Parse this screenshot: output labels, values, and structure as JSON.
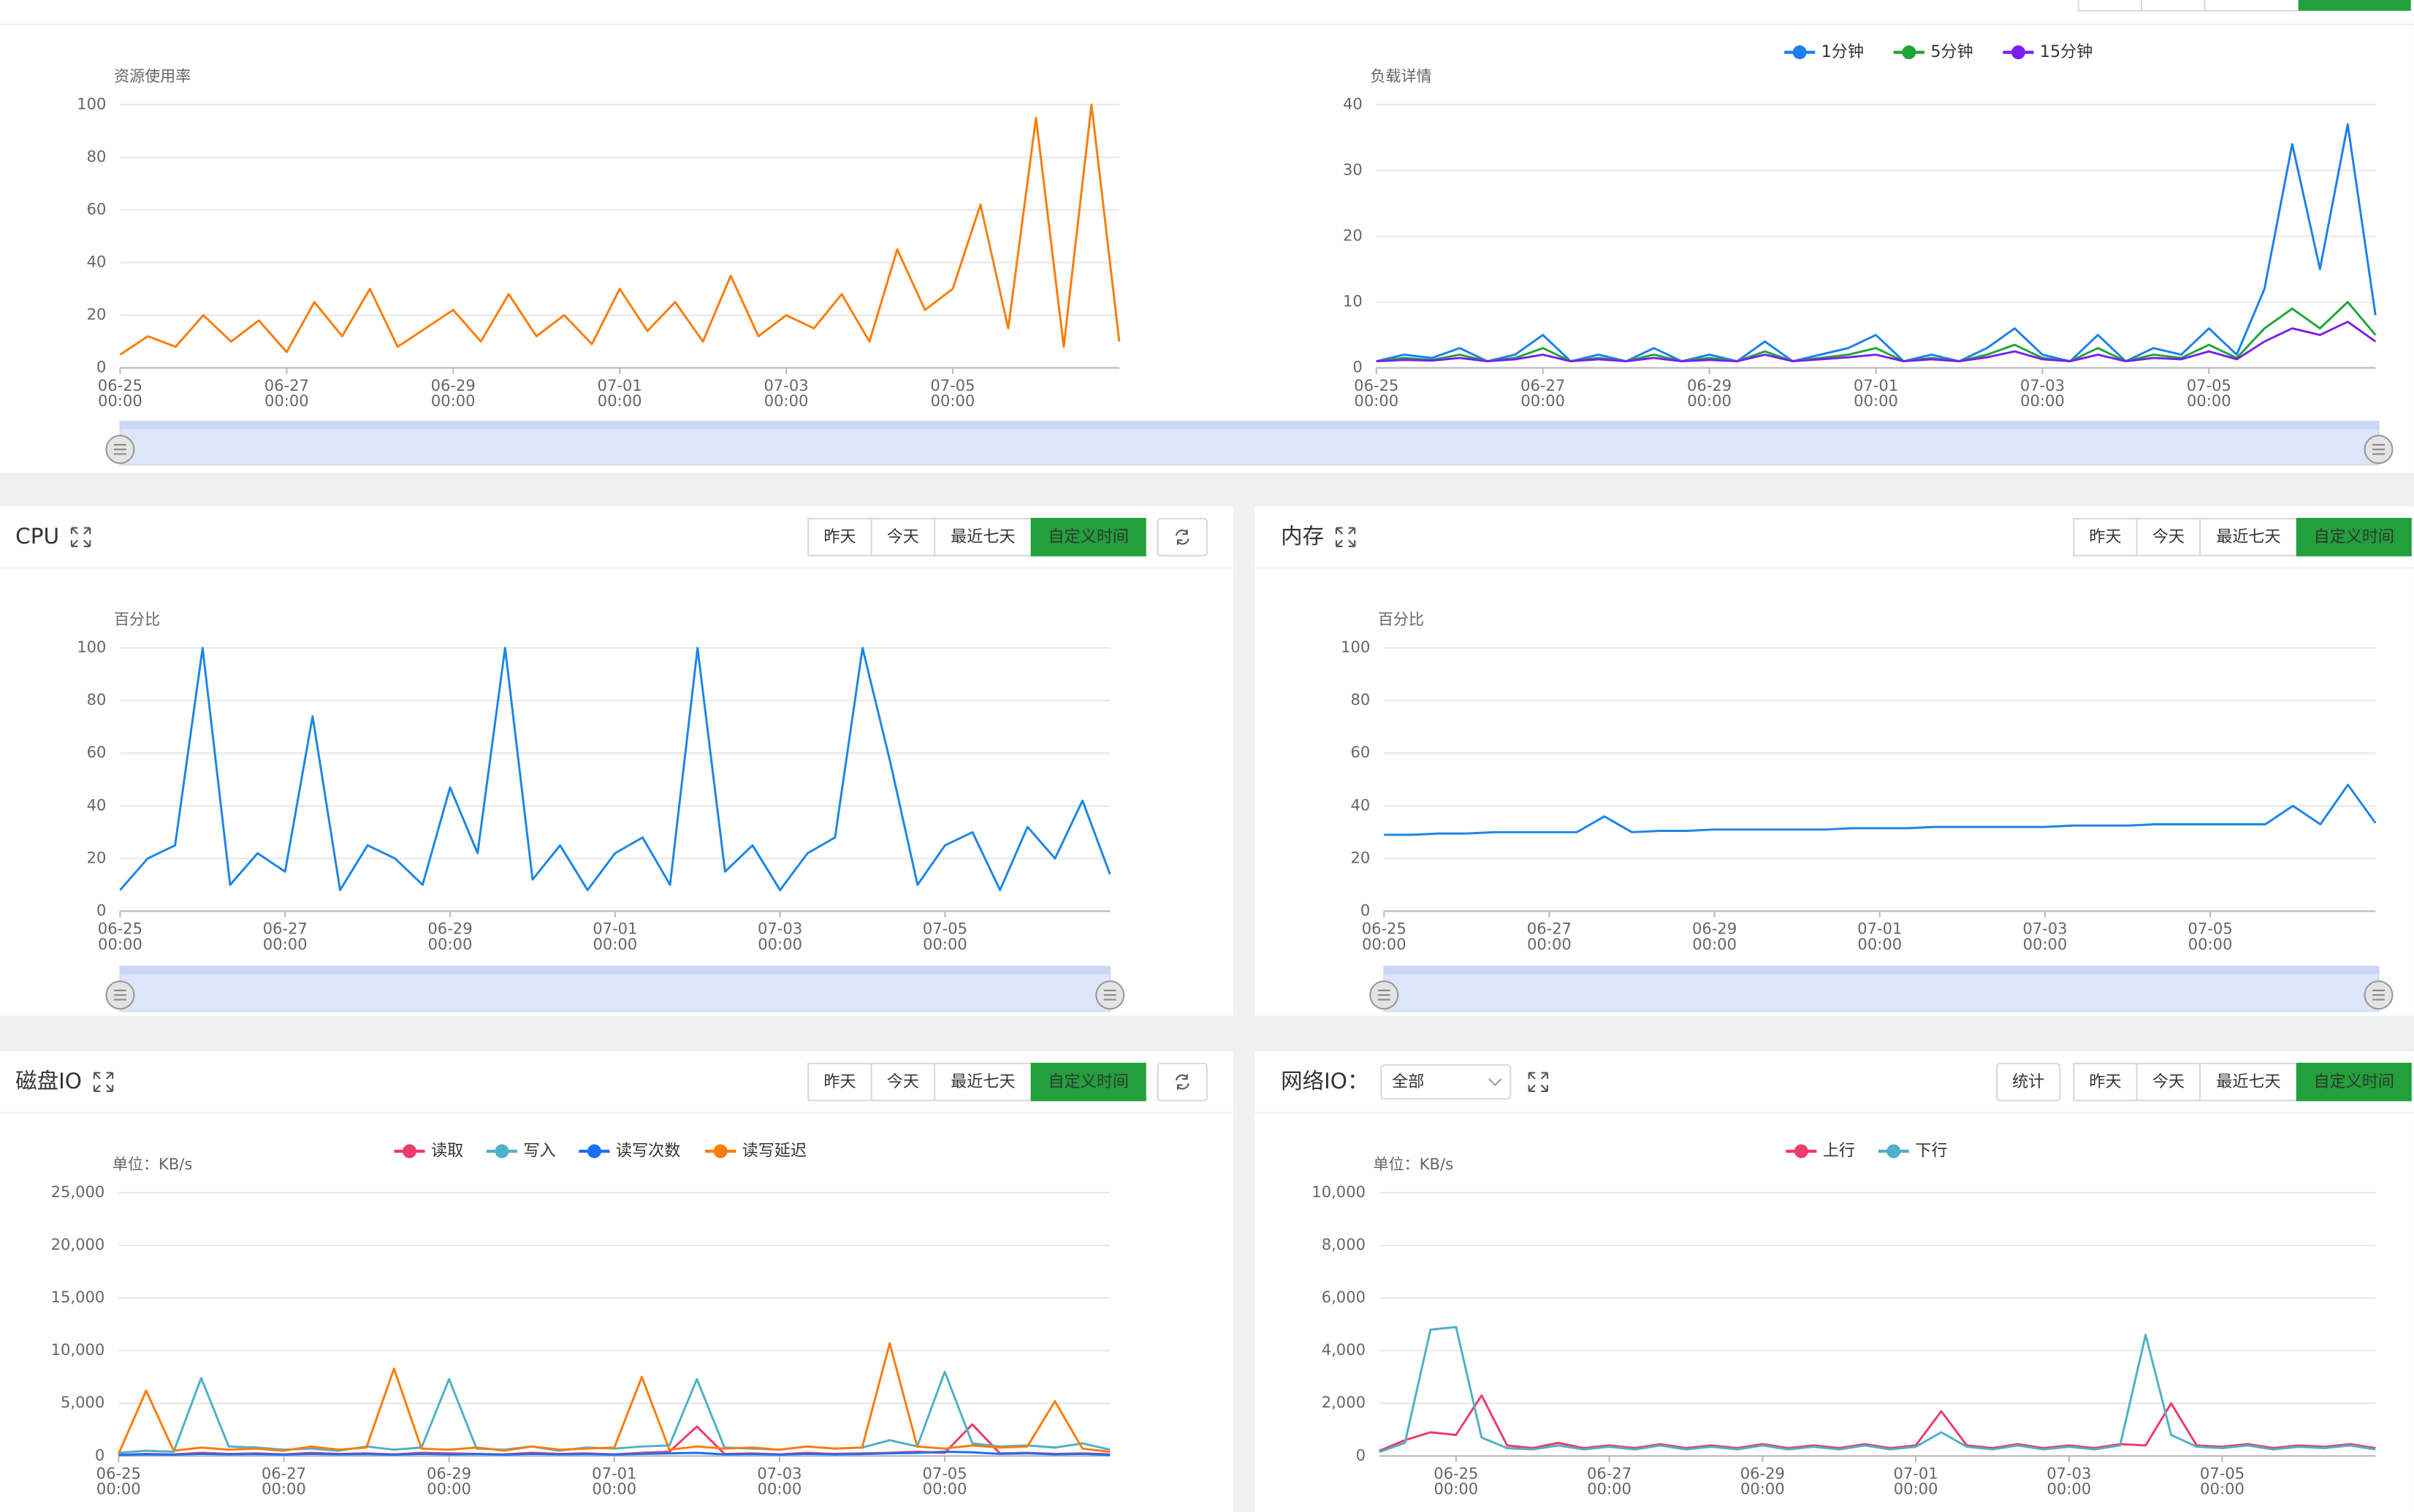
{
  "panels": [
    {
      "title": "CPU",
      "buttons": [
        "昨天",
        "今天",
        "最近七天",
        "自定义时间"
      ],
      "active": "自定义时间",
      "refresh": true
    },
    {
      "title": "内存",
      "buttons": [
        "昨天",
        "今天",
        "最近七天",
        "自定义时间"
      ],
      "active": "自定义时间",
      "refresh": false
    },
    {
      "title": "磁盘IO",
      "buttons": [
        "昨天",
        "今天",
        "最近七天",
        "自定义时间"
      ],
      "active": "自定义时间",
      "refresh": true
    },
    {
      "title": "网络IO：",
      "select": "全部",
      "extra_button": "统计",
      "buttons": [
        "昨天",
        "今天",
        "最近七天",
        "自定义时间"
      ],
      "active": "自定义时间",
      "refresh": false
    }
  ],
  "chart_data": [
    {
      "type": "line",
      "ylabel": "资源使用率",
      "xlim": [
        "06-25 00:00",
        "07-07 00:00"
      ],
      "xticks": [
        "06-25 00:00",
        "06-27 00:00",
        "06-29 00:00",
        "07-01 00:00",
        "07-03 00:00",
        "07-05 00:00"
      ],
      "ylim": [
        0,
        100
      ],
      "yticks": [
        0,
        20,
        40,
        60,
        80,
        100
      ],
      "grid": true,
      "series": [
        {
          "color": "#fa7d09",
          "values": [
            5,
            12,
            8,
            20,
            10,
            18,
            6,
            25,
            12,
            30,
            8,
            15,
            22,
            10,
            28,
            12,
            20,
            9,
            30,
            14,
            25,
            10,
            35,
            12,
            20,
            15,
            28,
            10,
            45,
            22,
            30,
            62,
            15,
            95,
            8,
            100,
            10
          ]
        }
      ]
    },
    {
      "type": "line",
      "ylabel": "负载详情",
      "xlim": [
        "06-25 00:00",
        "07-07 00:00"
      ],
      "xticks": [
        "06-25 00:00",
        "06-27 00:00",
        "06-29 00:00",
        "07-01 00:00",
        "07-03 00:00",
        "07-05 00:00"
      ],
      "ylim": [
        0,
        40
      ],
      "yticks": [
        0,
        10,
        20,
        30,
        40
      ],
      "grid": true,
      "legend": "top",
      "series": [
        {
          "name": "1分钟",
          "color": "#1b7ff0",
          "values": [
            1,
            2,
            1.5,
            3,
            1,
            2,
            5,
            1,
            2,
            1,
            3,
            1,
            2,
            1,
            4,
            1,
            2,
            3,
            5,
            1,
            2,
            1,
            3,
            6,
            2,
            1,
            5,
            1,
            3,
            2,
            6,
            2,
            12,
            34,
            15,
            37,
            8
          ]
        },
        {
          "name": "5分钟",
          "color": "#1fa535",
          "values": [
            1,
            1.5,
            1.2,
            2,
            1,
            1.5,
            3,
            1,
            1.5,
            1,
            2,
            1,
            1.5,
            1,
            2.5,
            1,
            1.5,
            2,
            3,
            1,
            1.5,
            1,
            2,
            3.5,
            1.5,
            1,
            3,
            1,
            2,
            1.5,
            3.5,
            1.5,
            6,
            9,
            6,
            10,
            5
          ]
        },
        {
          "name": "15分钟",
          "color": "#7b1ff0",
          "values": [
            1,
            1.2,
            1.1,
            1.5,
            1,
            1.3,
            2,
            1,
            1.3,
            1,
            1.5,
            1,
            1.2,
            1,
            2,
            1,
            1.3,
            1.6,
            2,
            1,
            1.3,
            1,
            1.6,
            2.5,
            1.3,
            1,
            2,
            1,
            1.5,
            1.3,
            2.5,
            1.3,
            4,
            6,
            5,
            7,
            4
          ]
        }
      ]
    },
    {
      "type": "line",
      "ylabel": "百分比",
      "xlim": [
        "06-25 00:00",
        "07-07 00:00"
      ],
      "xticks": [
        "06-25 00:00",
        "06-27 00:00",
        "06-29 00:00",
        "07-01 00:00",
        "07-03 00:00",
        "07-05 00:00"
      ],
      "ylim": [
        0,
        100
      ],
      "yticks": [
        0,
        20,
        40,
        60,
        80,
        100
      ],
      "grid": true,
      "series": [
        {
          "color": "#1b86e6",
          "values": [
            8,
            20,
            25,
            100,
            10,
            22,
            15,
            74,
            8,
            25,
            20,
            10,
            47,
            22,
            100,
            12,
            25,
            8,
            22,
            28,
            10,
            100,
            15,
            25,
            8,
            22,
            28,
            100,
            57,
            10,
            25,
            30,
            8,
            32,
            20,
            42,
            14
          ]
        }
      ]
    },
    {
      "type": "line",
      "ylabel": "百分比",
      "xlim": [
        "06-25 00:00",
        "07-07 00:00"
      ],
      "xticks": [
        "06-25 00:00",
        "06-27 00:00",
        "06-29 00:00",
        "07-01 00:00",
        "07-03 00:00",
        "07-05 00:00"
      ],
      "ylim": [
        0,
        100
      ],
      "yticks": [
        0,
        20,
        40,
        60,
        80,
        100
      ],
      "grid": true,
      "series": [
        {
          "color": "#1b86e6",
          "values": [
            29,
            29,
            29.5,
            29.5,
            30,
            30,
            30,
            30,
            36,
            30,
            30.5,
            30.5,
            31,
            31,
            31,
            31,
            31,
            31.5,
            31.5,
            31.5,
            32,
            32,
            32,
            32,
            32,
            32.5,
            32.5,
            32.5,
            33,
            33,
            33,
            33,
            33,
            40,
            33,
            48,
            33.5
          ]
        }
      ]
    },
    {
      "type": "line",
      "ylabel": "单位：KB/s",
      "xlim": [
        "06-25 00:00",
        "07-07 00:00"
      ],
      "xticks": [
        "06-25 00:00",
        "06-27 00:00",
        "06-29 00:00",
        "07-01 00:00",
        "07-03 00:00",
        "07-05 00:00"
      ],
      "ylim": [
        0,
        25000
      ],
      "yticks": [
        0,
        {
          "value": 5000,
          "label": "5,000"
        },
        {
          "value": 10000,
          "label": "10,000"
        },
        {
          "value": 15000,
          "label": "15,000"
        },
        {
          "value": 20000,
          "label": "20,000"
        },
        {
          "value": 25000,
          "label": "25,000"
        }
      ],
      "grid": true,
      "legend": "top",
      "series": [
        {
          "name": "读取",
          "color": "#ee3a6d",
          "values": [
            100,
            200,
            150,
            300,
            200,
            250,
            150,
            300,
            200,
            250,
            150,
            300,
            250,
            200,
            150,
            300,
            200,
            250,
            150,
            300,
            400,
            2800,
            200,
            250,
            150,
            300,
            200,
            250,
            300,
            400,
            300,
            3000,
            250,
            300,
            200,
            250,
            150
          ]
        },
        {
          "name": "写入",
          "color": "#4fb0c6",
          "values": [
            300,
            500,
            400,
            7400,
            900,
            800,
            600,
            700,
            500,
            900,
            600,
            800,
            7300,
            700,
            600,
            900,
            500,
            800,
            700,
            900,
            1000,
            7300,
            800,
            700,
            600,
            900,
            700,
            800,
            1500,
            900,
            8000,
            1200,
            900,
            1000,
            800,
            1200,
            600
          ]
        },
        {
          "name": "读写次数",
          "color": "#1d6ff2",
          "values": [
            100,
            150,
            120,
            200,
            150,
            180,
            120,
            200,
            150,
            180,
            120,
            200,
            150,
            180,
            120,
            200,
            150,
            180,
            120,
            200,
            250,
            300,
            150,
            180,
            120,
            200,
            150,
            180,
            250,
            300,
            400,
            350,
            200,
            250,
            150,
            200,
            100
          ]
        },
        {
          "name": "读写延迟",
          "color": "#fa7d09",
          "values": [
            200,
            6200,
            500,
            800,
            600,
            700,
            500,
            900,
            600,
            800,
            8300,
            700,
            600,
            800,
            500,
            900,
            600,
            700,
            800,
            7500,
            600,
            900,
            700,
            800,
            600,
            900,
            700,
            800,
            10700,
            900,
            700,
            1000,
            800,
            900,
            5200,
            700,
            400
          ]
        }
      ]
    },
    {
      "type": "line",
      "ylabel": "单位：KB/s",
      "xlim": [
        "06-24 00:00",
        "07-07 00:00"
      ],
      "xticks": [
        "06-25 00:00",
        "06-27 00:00",
        "06-29 00:00",
        "07-01 00:00",
        "07-03 00:00",
        "07-05 00:00"
      ],
      "ylim": [
        0,
        10000
      ],
      "yticks": [
        0,
        {
          "value": 2000,
          "label": "2,000"
        },
        {
          "value": 4000,
          "label": "4,000"
        },
        {
          "value": 6000,
          "label": "6,000"
        },
        {
          "value": 8000,
          "label": "8,000"
        },
        {
          "value": 10000,
          "label": "10,000"
        }
      ],
      "grid": true,
      "legend": "top",
      "series": [
        {
          "name": "上行",
          "color": "#ee3a6d",
          "values": [
            200,
            600,
            900,
            800,
            2300,
            400,
            300,
            500,
            300,
            400,
            300,
            450,
            300,
            400,
            300,
            450,
            300,
            400,
            300,
            450,
            300,
            400,
            1700,
            400,
            300,
            450,
            300,
            400,
            300,
            450,
            400,
            2000,
            400,
            350,
            450,
            300,
            400,
            350,
            450,
            300
          ]
        },
        {
          "name": "下行",
          "color": "#4fb0c6",
          "values": [
            150,
            500,
            4800,
            4900,
            700,
            300,
            250,
            400,
            250,
            350,
            250,
            400,
            250,
            350,
            250,
            400,
            250,
            350,
            250,
            400,
            250,
            350,
            900,
            350,
            250,
            400,
            250,
            350,
            250,
            400,
            4600,
            800,
            350,
            300,
            400,
            250,
            350,
            300,
            400,
            250
          ]
        }
      ]
    }
  ]
}
